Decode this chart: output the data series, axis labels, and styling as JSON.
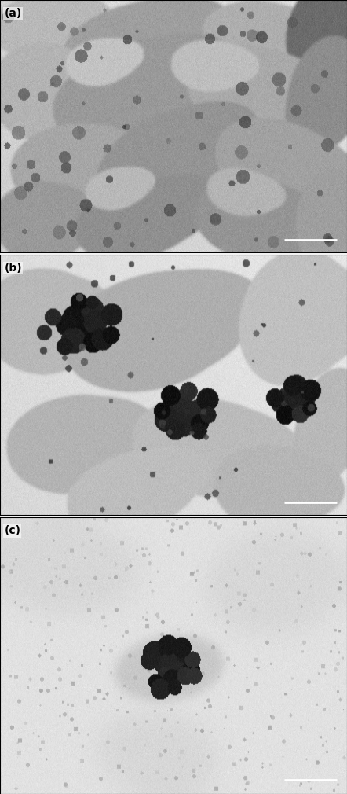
{
  "figsize": [
    4.42,
    10.1
  ],
  "dpi": 100,
  "panel_labels": [
    "(a)",
    "(b)",
    "(c)"
  ],
  "label_fontsize": 10,
  "label_color": "black",
  "label_bold": true,
  "border_color": "black",
  "border_linewidth": 0.8,
  "scalebar_color": "white",
  "scalebar_linewidth": 2,
  "hspace": 0.008
}
